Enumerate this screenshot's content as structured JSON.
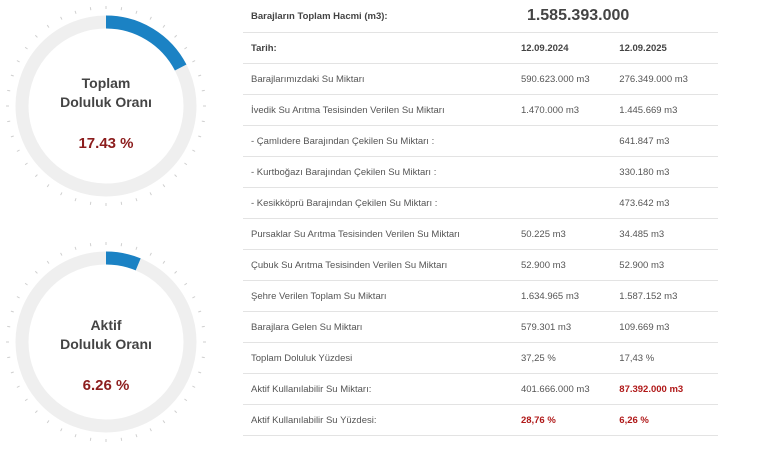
{
  "gauges": [
    {
      "title_line1": "Toplam",
      "title_line2": "Doluluk Oranı",
      "value_text": "17.43 %",
      "fraction": 0.1743,
      "track_color": "#efefef",
      "fill_color": "#1b82c4"
    },
    {
      "title_line1": "Aktif",
      "title_line2": "Doluluk Oranı",
      "value_text": "6.26 %",
      "fraction": 0.0626,
      "track_color": "#efefef",
      "fill_color": "#1b82c4"
    }
  ],
  "table": {
    "total_label": "Barajların Toplam Hacmi (m3):",
    "total_value": "1.585.393.000",
    "date_label": "Tarih:",
    "date1": "12.09.2024",
    "date2": "12.09.2025",
    "rows": [
      {
        "label": "Barajlarımızdaki Su Miktarı",
        "v1": "590.623.000 m3",
        "v2": "276.349.000 m3"
      },
      {
        "label": "İvedik Su Arıtma Tesisinden Verilen Su Miktarı",
        "v1": "1.470.000 m3",
        "v2": "1.445.669 m3"
      },
      {
        "label": "- Çamlıdere Barajından Çekilen Su Miktarı :",
        "v1": "",
        "v2": "641.847 m3"
      },
      {
        "label": "- Kurtboğazı Barajından Çekilen Su Miktarı :",
        "v1": "",
        "v2": "330.180 m3"
      },
      {
        "label": "- Kesikköprü Barajından Çekilen Su Miktarı :",
        "v1": "",
        "v2": "473.642 m3"
      },
      {
        "label": "Pursaklar Su Arıtma Tesisinden Verilen Su Miktarı",
        "v1": "50.225 m3",
        "v2": "34.485 m3"
      },
      {
        "label": "Çubuk Su Arıtma Tesisinden Verilen Su Miktarı",
        "v1": "52.900 m3",
        "v2": "52.900 m3"
      },
      {
        "label": "Şehre Verilen Toplam Su Miktarı",
        "v1": "1.634.965 m3",
        "v2": "1.587.152 m3"
      },
      {
        "label": "Barajlara Gelen Su Miktarı",
        "v1": "579.301 m3",
        "v2": "109.669 m3"
      },
      {
        "label": "Toplam Doluluk Yüzdesi",
        "v1": "37,25 %",
        "v2": "17,43 %"
      },
      {
        "label": "Aktif Kullanılabilir Su Miktarı:",
        "v1": "401.666.000 m3",
        "v2": "87.392.000 m3"
      },
      {
        "label": "Aktif Kullanılabilir Su Yüzdesi:",
        "v1": "28,76 %",
        "v2": "6,26 %"
      }
    ]
  }
}
